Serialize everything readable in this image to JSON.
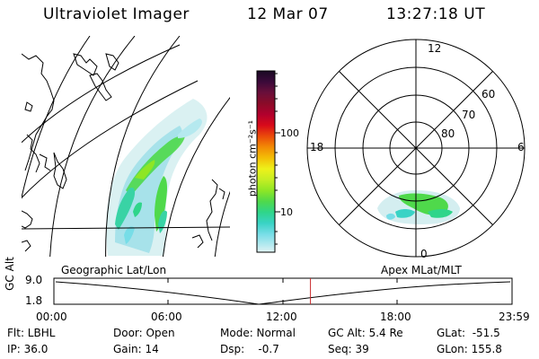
{
  "header": {
    "instrument": "Ultraviolet Imager",
    "date": "12 Mar 07",
    "time": "13:27:18 UT"
  },
  "map_labels": {
    "left": "Geographic Lat/Lon",
    "right": "Apex MLat/MLT"
  },
  "colorbar": {
    "unit_label": "photon cm⁻²s⁻¹",
    "ticks": [
      "100",
      "10"
    ],
    "colors": [
      "#1a0a24",
      "#3b0a3a",
      "#6a0f3a",
      "#8b0b28",
      "#b1002d",
      "#d80a1a",
      "#ea4a0a",
      "#f28a05",
      "#f3be06",
      "#eef11a",
      "#c5ee24",
      "#8ee625",
      "#4fd94b",
      "#2fd58a",
      "#39d3c5",
      "#77dde7",
      "#b5e9ef",
      "#e2f4f5"
    ]
  },
  "polar": {
    "mlt": {
      "top": "12",
      "left": "18",
      "right": "6",
      "bottom": "0"
    },
    "mlat": [
      "60",
      "70",
      "80"
    ]
  },
  "timeline": {
    "ylabel": "GC Alt",
    "yticks": [
      "9.0",
      "1.8"
    ],
    "xticks": [
      "00:00",
      "06:00",
      "12:00",
      "18:00",
      "23:59"
    ],
    "current_time_fraction": 0.56
  },
  "info": {
    "flt": "Flt: LBHL",
    "ip": "IP: 36.0",
    "door": "Door: Open",
    "gain": "Gain: 14",
    "mode": "Mode: Normal",
    "dsp": "Dsp:    -0.7",
    "gcalt": "GC Alt: 5.4 Re",
    "seq": "Seq: 39",
    "glat": "GLat:  -51.5",
    "glon": "GLon: 155.8"
  },
  "colors": {
    "accent_line": "#c8282a",
    "aurora_main": "#39d3a5"
  }
}
